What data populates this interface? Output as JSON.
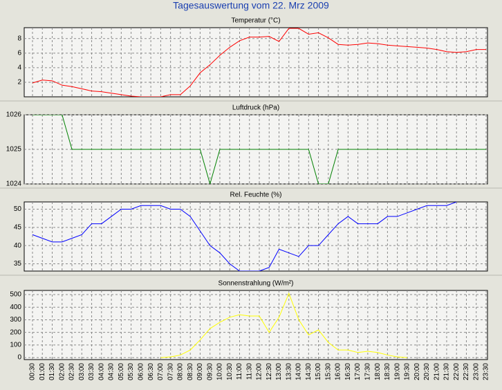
{
  "title": "Tagesauswertung vom 22. Mrz 2009",
  "chart_data": [
    {
      "type": "line",
      "title": "Temperatur (°C)",
      "color": "#ff0000",
      "grid": true,
      "ylim": [
        0,
        9.5
      ],
      "yticks": [
        2,
        4,
        6,
        8
      ],
      "values": [
        1.9,
        2.3,
        2.2,
        1.6,
        1.4,
        1.1,
        0.8,
        0.7,
        0.5,
        0.3,
        0.1,
        0,
        0,
        0,
        0.3,
        0.3,
        1.5,
        3.3,
        4.4,
        5.7,
        6.8,
        7.7,
        8.2,
        8.2,
        8.3,
        7.6,
        9.4,
        9.4,
        8.6,
        8.8,
        8.1,
        7.2,
        7.1,
        7.2,
        7.4,
        7.3,
        7.1,
        7.0,
        6.9,
        6.8,
        6.7,
        6.5,
        6.2,
        6.1,
        6.2,
        6.5,
        6.5
      ]
    },
    {
      "type": "line",
      "title": "Luftdruck (hPa)",
      "color": "#008000",
      "grid": true,
      "ylim": [
        1024,
        1026
      ],
      "yticks": [
        1024,
        1025,
        1026
      ],
      "values": [
        1026,
        1026,
        1026,
        1026,
        1025,
        1025,
        1025,
        1025,
        1025,
        1025,
        1025,
        1025,
        1025,
        1025,
        1025,
        1025,
        1025,
        1025,
        1024,
        1025,
        1025,
        1025,
        1025,
        1025,
        1025,
        1025,
        1025,
        1025,
        1025,
        1024,
        1024,
        1025,
        1025,
        1025,
        1025,
        1025,
        1025,
        1025,
        1025,
        1025,
        1025,
        1025,
        1025,
        1025,
        1025,
        1025,
        1025
      ]
    },
    {
      "type": "line",
      "title": "Rel. Feuchte (%)",
      "color": "#0000ff",
      "grid": true,
      "ylim": [
        33,
        52
      ],
      "yticks": [
        35,
        40,
        45,
        50
      ],
      "values": [
        43,
        42,
        41,
        41,
        42,
        43,
        46,
        46,
        48,
        50,
        50,
        51,
        51,
        51,
        50,
        50,
        48,
        44,
        40,
        38,
        35,
        33,
        33,
        33,
        34,
        39,
        38,
        37,
        40,
        40,
        43,
        46,
        48,
        46,
        46,
        46,
        48,
        48,
        49,
        50,
        51,
        51,
        51,
        52,
        null,
        null,
        null
      ]
    },
    {
      "type": "line",
      "title": "Sonnenstrahlung (W/m²)",
      "color": "#ffff00",
      "grid": true,
      "ylim": [
        -16,
        533
      ],
      "yticks": [
        0,
        100,
        200,
        300,
        400,
        500
      ],
      "values": [
        null,
        null,
        null,
        null,
        null,
        null,
        null,
        null,
        null,
        null,
        null,
        null,
        null,
        0,
        5,
        20,
        60,
        140,
        230,
        280,
        320,
        340,
        330,
        330,
        200,
        320,
        510,
        300,
        180,
        220,
        120,
        60,
        60,
        40,
        50,
        40,
        20,
        5,
        0,
        null,
        null,
        null,
        null,
        null,
        null,
        null,
        null
      ],
      "categories": [
        "00:30",
        "01:00",
        "01:30",
        "02:00",
        "02:30",
        "03:00",
        "03:30",
        "04:00",
        "04:30",
        "05:00",
        "05:30",
        "06:00",
        "06:30",
        "07:00",
        "07:30",
        "08:00",
        "08:30",
        "09:00",
        "09:30",
        "10:00",
        "10:30",
        "11:00",
        "11:30",
        "12:00",
        "12:30",
        "13:00",
        "13:30",
        "14:00",
        "14:30",
        "15:00",
        "15:30",
        "16:00",
        "16:30",
        "17:00",
        "17:30",
        "18:00",
        "18:30",
        "19:00",
        "19:30",
        "20:00",
        "20:30",
        "21:00",
        "21:30",
        "22:00",
        "22:30",
        "23:00",
        "23:30"
      ]
    }
  ]
}
